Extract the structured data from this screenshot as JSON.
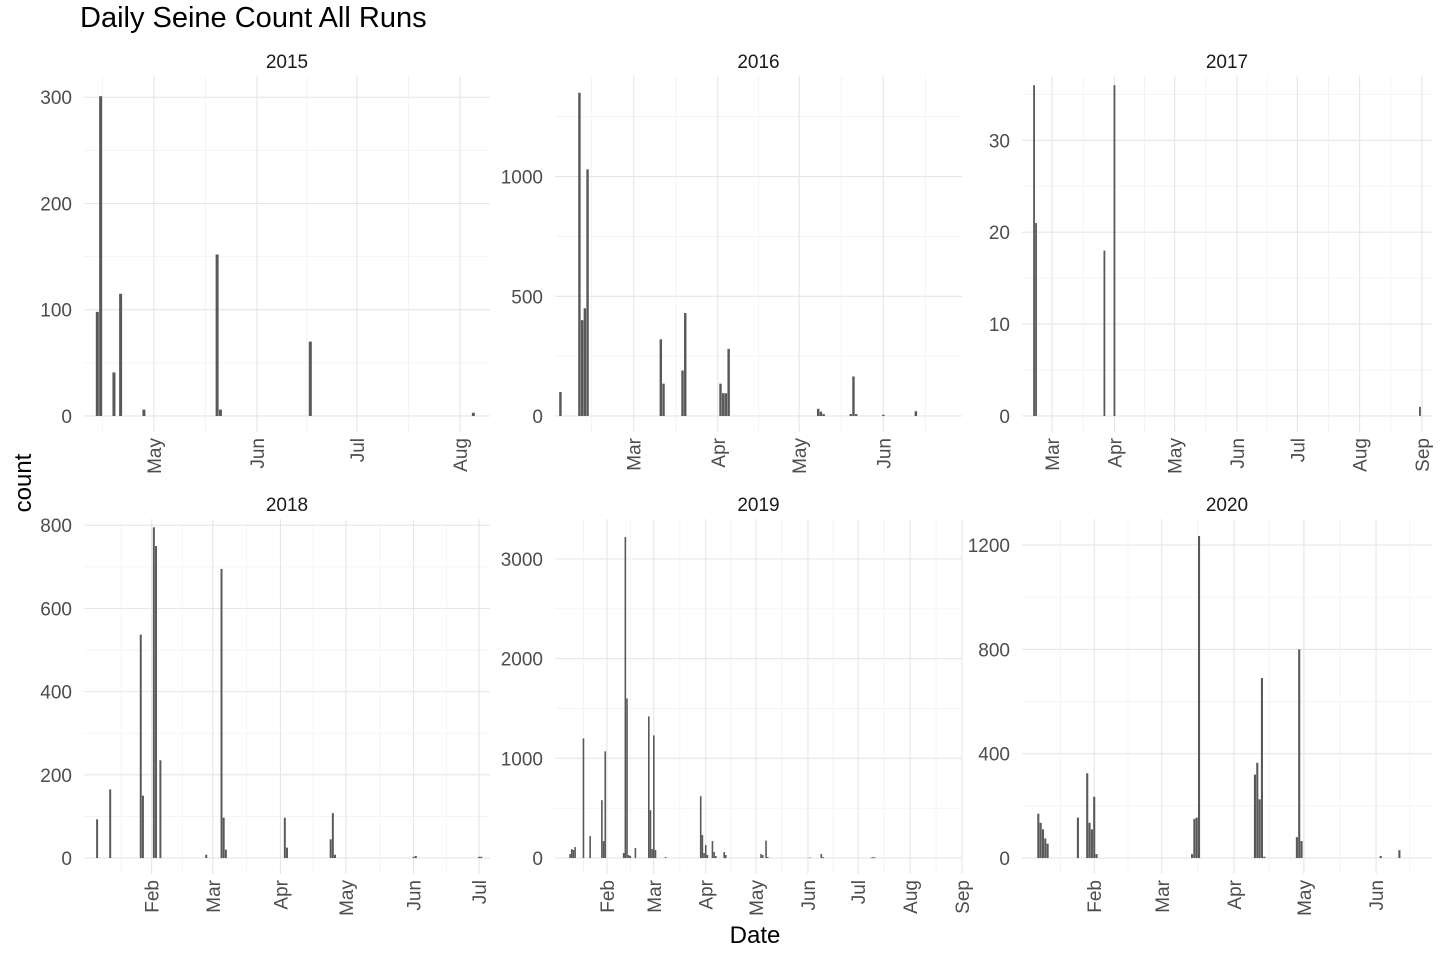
{
  "title": "Daily Seine Count All Runs",
  "chart_data": {
    "type": "bar",
    "title": "Daily Seine Count All Runs",
    "xlabel": "Date",
    "ylabel": "count",
    "grid": true,
    "legend": "none",
    "bar_color": "#595959",
    "facets": [
      {
        "name": "2015",
        "xlim": [
          "2015-04-10",
          "2015-08-10"
        ],
        "ylim": [
          0,
          320
        ],
        "y_ticks": [
          0,
          100,
          200,
          300
        ],
        "x_ticks": [
          {
            "date": "2015-05-01",
            "label": "May"
          },
          {
            "date": "2015-06-01",
            "label": "Jun"
          },
          {
            "date": "2015-07-01",
            "label": "Jul"
          },
          {
            "date": "2015-08-01",
            "label": "Aug"
          }
        ],
        "dates": [
          "2015-04-14",
          "2015-04-15",
          "2015-04-19",
          "2015-04-21",
          "2015-04-28",
          "2015-05-20",
          "2015-05-21",
          "2015-06-17",
          "2015-08-05"
        ],
        "values": [
          98,
          301,
          41,
          115,
          6,
          152,
          6,
          70,
          3
        ]
      },
      {
        "name": "2016",
        "xlim": [
          "2016-02-01",
          "2016-06-30"
        ],
        "ylim": [
          0,
          1420
        ],
        "y_ticks": [
          0,
          500,
          1000
        ],
        "x_ticks": [
          {
            "date": "2016-03-01",
            "label": "Mar"
          },
          {
            "date": "2016-04-01",
            "label": "Apr"
          },
          {
            "date": "2016-05-01",
            "label": "May"
          },
          {
            "date": "2016-06-01",
            "label": "Jun"
          }
        ],
        "dates": [
          "2016-02-03",
          "2016-02-10",
          "2016-02-11",
          "2016-02-12",
          "2016-02-13",
          "2016-03-11",
          "2016-03-12",
          "2016-03-19",
          "2016-03-20",
          "2016-04-02",
          "2016-04-03",
          "2016-04-04",
          "2016-04-05",
          "2016-05-08",
          "2016-05-09",
          "2016-05-10",
          "2016-05-20",
          "2016-05-21",
          "2016-05-22",
          "2016-06-01",
          "2016-06-13"
        ],
        "values": [
          100,
          1350,
          400,
          450,
          1030,
          320,
          135,
          190,
          430,
          135,
          95,
          95,
          280,
          30,
          18,
          8,
          8,
          165,
          8,
          5,
          20
        ]
      },
      {
        "name": "2017",
        "xlim": [
          "2017-02-14",
          "2017-09-06"
        ],
        "ylim": [
          0,
          37
        ],
        "y_ticks": [
          0,
          10,
          20,
          30
        ],
        "x_ticks": [
          {
            "date": "2017-03-01",
            "label": "Mar"
          },
          {
            "date": "2017-04-01",
            "label": "Apr"
          },
          {
            "date": "2017-05-01",
            "label": "May"
          },
          {
            "date": "2017-06-01",
            "label": "Jun"
          },
          {
            "date": "2017-07-01",
            "label": "Jul"
          },
          {
            "date": "2017-08-01",
            "label": "Aug"
          },
          {
            "date": "2017-09-01",
            "label": "Sep"
          }
        ],
        "dates": [
          "2017-02-20",
          "2017-02-21",
          "2017-03-27",
          "2017-04-01",
          "2017-08-31"
        ],
        "values": [
          36,
          21,
          18,
          36,
          1
        ]
      },
      {
        "name": "2018",
        "xlim": [
          "2018-01-01",
          "2018-07-06"
        ],
        "ylim": [
          0,
          815
        ],
        "y_ticks": [
          0,
          200,
          400,
          600,
          800
        ],
        "x_ticks": [
          {
            "date": "2018-02-01",
            "label": "Feb"
          },
          {
            "date": "2018-03-01",
            "label": "Mar"
          },
          {
            "date": "2018-04-01",
            "label": "Apr"
          },
          {
            "date": "2018-05-01",
            "label": "May"
          },
          {
            "date": "2018-06-01",
            "label": "Jun"
          },
          {
            "date": "2018-07-01",
            "label": "Jul"
          }
        ],
        "dates": [
          "2018-01-07",
          "2018-01-13",
          "2018-01-27",
          "2018-01-28",
          "2018-02-02",
          "2018-02-03",
          "2018-02-05",
          "2018-02-26",
          "2018-03-05",
          "2018-03-06",
          "2018-03-07",
          "2018-04-03",
          "2018-04-04",
          "2018-04-24",
          "2018-04-25",
          "2018-04-26",
          "2018-06-01",
          "2018-06-02",
          "2018-07-01",
          "2018-07-02"
        ],
        "values": [
          93,
          165,
          537,
          150,
          795,
          750,
          235,
          8,
          695,
          97,
          20,
          97,
          25,
          45,
          108,
          8,
          3,
          5,
          3,
          3
        ]
      },
      {
        "name": "2019",
        "xlim": [
          "2019-01-01",
          "2019-09-01"
        ],
        "ylim": [
          0,
          3400
        ],
        "y_ticks": [
          0,
          1000,
          2000,
          3000
        ],
        "x_ticks": [
          {
            "date": "2019-02-01",
            "label": "Feb"
          },
          {
            "date": "2019-03-01",
            "label": "Mar"
          },
          {
            "date": "2019-04-01",
            "label": "Apr"
          },
          {
            "date": "2019-05-01",
            "label": "May"
          },
          {
            "date": "2019-06-01",
            "label": "Jun"
          },
          {
            "date": "2019-07-01",
            "label": "Jul"
          },
          {
            "date": "2019-08-01",
            "label": "Aug"
          },
          {
            "date": "2019-09-01",
            "label": "Sep"
          }
        ],
        "dates": [
          "2019-01-10",
          "2019-01-11",
          "2019-01-12",
          "2019-01-13",
          "2019-01-18",
          "2019-01-22",
          "2019-01-29",
          "2019-01-30",
          "2019-01-31",
          "2019-02-11",
          "2019-02-12",
          "2019-02-13",
          "2019-02-14",
          "2019-02-15",
          "2019-02-18",
          "2019-02-26",
          "2019-02-27",
          "2019-02-28",
          "2019-03-01",
          "2019-03-02",
          "2019-03-08",
          "2019-03-29",
          "2019-03-30",
          "2019-03-31",
          "2019-04-01",
          "2019-04-02",
          "2019-04-05",
          "2019-04-06",
          "2019-04-07",
          "2019-04-12",
          "2019-04-13",
          "2019-05-04",
          "2019-05-05",
          "2019-05-07",
          "2019-05-08",
          "2019-06-02",
          "2019-06-09",
          "2019-06-10",
          "2019-07-09",
          "2019-07-10",
          "2019-07-11"
        ],
        "values": [
          40,
          90,
          80,
          110,
          1200,
          220,
          580,
          170,
          1070,
          50,
          3220,
          1600,
          30,
          20,
          100,
          1420,
          480,
          90,
          1230,
          80,
          10,
          620,
          230,
          50,
          130,
          30,
          170,
          60,
          20,
          60,
          30,
          40,
          30,
          175,
          10,
          5,
          40,
          10,
          5,
          10,
          5
        ]
      },
      {
        "name": "2020",
        "xlim": [
          "2020-01-01",
          "2020-06-25"
        ],
        "ylim": [
          0,
          1300
        ],
        "y_ticks": [
          0,
          400,
          800,
          1200
        ],
        "x_ticks": [
          {
            "date": "2020-02-01",
            "label": "Feb"
          },
          {
            "date": "2020-03-01",
            "label": "Mar"
          },
          {
            "date": "2020-04-01",
            "label": "Apr"
          },
          {
            "date": "2020-05-01",
            "label": "May"
          },
          {
            "date": "2020-06-01",
            "label": "Jun"
          }
        ],
        "dates": [
          "2020-01-08",
          "2020-01-09",
          "2020-01-10",
          "2020-01-11",
          "2020-01-12",
          "2020-01-25",
          "2020-01-29",
          "2020-01-30",
          "2020-01-31",
          "2020-02-01",
          "2020-02-02",
          "2020-03-14",
          "2020-03-15",
          "2020-03-16",
          "2020-03-17",
          "2020-04-10",
          "2020-04-11",
          "2020-04-12",
          "2020-04-13",
          "2020-04-14",
          "2020-04-28",
          "2020-04-29",
          "2020-04-30",
          "2020-06-03",
          "2020-06-11"
        ],
        "values": [
          170,
          135,
          110,
          75,
          55,
          155,
          325,
          135,
          110,
          235,
          15,
          15,
          150,
          155,
          1235,
          320,
          365,
          225,
          690,
          5,
          80,
          800,
          65,
          8,
          30
        ]
      }
    ]
  }
}
